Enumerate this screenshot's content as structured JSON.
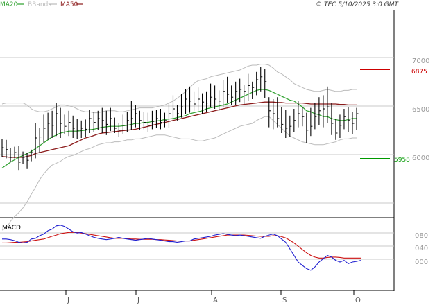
{
  "header": {
    "legend": [
      {
        "label": "MA20",
        "color": "#2ca02c"
      },
      {
        "label": "BBands",
        "color": "#bbbbbb"
      },
      {
        "label": "MA50",
        "color": "#8b1a1a"
      }
    ],
    "copyright": "© TEC 5/10/2025 3:0 GMT"
  },
  "colors": {
    "price": "#000000",
    "ma20": "#2ca02c",
    "ma50": "#8b1a1a",
    "bbands": "#bbbbbb",
    "grid": "#c8c8c8",
    "macd": "#1f1fd0",
    "signal": "#cc1111",
    "resistance": "#cc0000",
    "support": "#009900"
  },
  "chart_data": [
    {
      "type": "line",
      "panel": "price",
      "x_tick_labels": [
        "J",
        "J",
        "A",
        "S",
        "O"
      ],
      "y_tick_labels": [
        "7000",
        "6500",
        "6000"
      ],
      "ylim": [
        5450,
        7200
      ],
      "grid": true,
      "resistance": {
        "value": 6875,
        "label": "6875"
      },
      "support": {
        "value": 5958,
        "label": "5958"
      },
      "ohlc_high": [
        6190,
        6180,
        6100,
        6110,
        6120,
        6060,
        6050,
        6080,
        6350,
        6300,
        6440,
        6460,
        6480,
        6560,
        6510,
        6440,
        6480,
        6430,
        6400,
        6380,
        6390,
        6490,
        6470,
        6480,
        6510,
        6480,
        6510,
        6410,
        6350,
        6440,
        6470,
        6580,
        6540,
        6480,
        6470,
        6460,
        6480,
        6490,
        6500,
        6460,
        6560,
        6640,
        6540,
        6650,
        6700,
        6730,
        6680,
        6720,
        6660,
        6680,
        6760,
        6740,
        6690,
        6800,
        6830,
        6740,
        6780,
        6810,
        6750,
        6860,
        6780,
        6880,
        6930,
        6910,
        6620,
        6600,
        6620,
        6520,
        6490,
        6430,
        6500,
        6580,
        6520,
        6460,
        6510,
        6560,
        6620,
        6640,
        6730,
        6560,
        6400,
        6440,
        6500,
        6520,
        6470,
        6510
      ],
      "ohlc_low": [
        6000,
        5990,
        5950,
        5990,
        5870,
        5930,
        5880,
        5960,
        5990,
        6050,
        6150,
        6180,
        6200,
        6220,
        6200,
        6240,
        6220,
        6200,
        6190,
        6200,
        6210,
        6250,
        6260,
        6280,
        6250,
        6230,
        6270,
        6250,
        6210,
        6240,
        6260,
        6280,
        6310,
        6280,
        6290,
        6260,
        6290,
        6300,
        6290,
        6310,
        6300,
        6370,
        6380,
        6410,
        6450,
        6460,
        6480,
        6480,
        6450,
        6470,
        6520,
        6500,
        6480,
        6520,
        6560,
        6540,
        6540,
        6570,
        6550,
        6580,
        6600,
        6640,
        6680,
        6610,
        6310,
        6290,
        6310,
        6250,
        6200,
        6210,
        6260,
        6310,
        6320,
        6150,
        6220,
        6290,
        6330,
        6310,
        6350,
        6230,
        6180,
        6200,
        6290,
        6260,
        6240,
        6280
      ],
      "ohlc_close": [
        6100,
        6080,
        6000,
        6050,
        5950,
        6000,
        5970,
        6050,
        6200,
        6210,
        6300,
        6350,
        6330,
        6450,
        6350,
        6320,
        6360,
        6300,
        6280,
        6300,
        6290,
        6400,
        6360,
        6400,
        6380,
        6340,
        6400,
        6300,
        6280,
        6330,
        6380,
        6400,
        6450,
        6380,
        6360,
        6330,
        6370,
        6400,
        6360,
        6380,
        6450,
        6500,
        6450,
        6520,
        6600,
        6580,
        6550,
        6600,
        6570,
        6560,
        6620,
        6600,
        6580,
        6680,
        6650,
        6620,
        6680,
        6700,
        6680,
        6740,
        6720,
        6800,
        6830,
        6780,
        6480,
        6450,
        6400,
        6340,
        6300,
        6320,
        6380,
        6450,
        6420,
        6280,
        6320,
        6420,
        6480,
        6500,
        6520,
        6350,
        6250,
        6330,
        6420,
        6380,
        6350,
        6450
      ],
      "ma20": [
        5890,
        5920,
        5950,
        5975,
        6000,
        6020,
        6040,
        6060,
        6090,
        6120,
        6150,
        6180,
        6210,
        6230,
        6250,
        6260,
        6270,
        6270,
        6270,
        6275,
        6280,
        6285,
        6290,
        6300,
        6310,
        6315,
        6320,
        6320,
        6320,
        6325,
        6330,
        6340,
        6350,
        6350,
        6360,
        6360,
        6370,
        6375,
        6380,
        6390,
        6395,
        6400,
        6410,
        6420,
        6430,
        6450,
        6460,
        6470,
        6480,
        6500,
        6510,
        6520,
        6530,
        6540,
        6550,
        6570,
        6590,
        6610,
        6630,
        6650,
        6670,
        6690,
        6700,
        6700,
        6690,
        6670,
        6650,
        6630,
        6610,
        6590,
        6580,
        6550,
        6520,
        6480,
        6470,
        6450,
        6440,
        6420,
        6420,
        6400,
        6390,
        6380,
        6380,
        6390,
        6400,
        6400
      ],
      "ma50": [
        6010,
        6005,
        6000,
        6000,
        6000,
        6000,
        6010,
        6020,
        6040,
        6050,
        6060,
        6070,
        6080,
        6090,
        6100,
        6110,
        6120,
        6140,
        6160,
        6180,
        6200,
        6210,
        6225,
        6240,
        6250,
        6255,
        6260,
        6265,
        6270,
        6275,
        6280,
        6285,
        6290,
        6300,
        6310,
        6320,
        6330,
        6340,
        6350,
        6360,
        6370,
        6380,
        6390,
        6400,
        6410,
        6420,
        6430,
        6440,
        6450,
        6460,
        6470,
        6480,
        6490,
        6500,
        6510,
        6520,
        6530,
        6540,
        6545,
        6550,
        6555,
        6560,
        6565,
        6570,
        6570,
        6570,
        6565,
        6565,
        6560,
        6560,
        6560,
        6560,
        6560,
        6555,
        6550,
        6550,
        6550,
        6550,
        6550,
        6550,
        6550,
        6545,
        6545,
        6540,
        6540,
        6540
      ],
      "bb_upper": [
        6550,
        6560,
        6560,
        6560,
        6560,
        6560,
        6540,
        6500,
        6480,
        6470,
        6470,
        6480,
        6500,
        6520,
        6540,
        6540,
        6530,
        6520,
        6500,
        6480,
        6470,
        6470,
        6460,
        6460,
        6470,
        6480,
        6480,
        6480,
        6470,
        6470,
        6480,
        6490,
        6500,
        6510,
        6510,
        6510,
        6510,
        6520,
        6530,
        6540,
        6560,
        6580,
        6610,
        6640,
        6680,
        6720,
        6760,
        6790,
        6800,
        6810,
        6830,
        6840,
        6850,
        6860,
        6870,
        6880,
        6890,
        6900,
        6920,
        6940,
        6950,
        6950,
        6960,
        6960,
        6950,
        6920,
        6880,
        6860,
        6830,
        6800,
        6760,
        6740,
        6720,
        6700,
        6690,
        6680,
        6680,
        6690,
        6700,
        6690,
        6680,
        6680,
        6690,
        6690,
        6700,
        6700
      ],
      "bb_lower": [
        5250,
        5270,
        5340,
        5390,
        5430,
        5480,
        5540,
        5620,
        5690,
        5770,
        5830,
        5880,
        5920,
        5940,
        5960,
        5990,
        6010,
        6020,
        6040,
        6060,
        6080,
        6090,
        6110,
        6130,
        6140,
        6150,
        6150,
        6160,
        6160,
        6170,
        6180,
        6180,
        6190,
        6190,
        6200,
        6210,
        6220,
        6230,
        6230,
        6230,
        6220,
        6210,
        6200,
        6190,
        6190,
        6190,
        6180,
        6170,
        6170,
        6180,
        6190,
        6200,
        6220,
        6240,
        6260,
        6280,
        6300,
        6320,
        6330,
        6340,
        6350,
        6380,
        6400,
        6420,
        6420,
        6380,
        6340,
        6300,
        6260,
        6220,
        6200,
        6180,
        6160,
        6150,
        6140,
        6130,
        6130,
        6130,
        6140,
        6150,
        6160,
        6180,
        6190,
        6190,
        6200,
        6200
      ]
    },
    {
      "type": "line",
      "panel": "macd",
      "title": "MACD",
      "y_tick_labels": [
        "080",
        "040",
        "000"
      ],
      "ylim": [
        -40,
        130
      ],
      "grid": true,
      "series": [
        {
          "name": "",
          "values": [
            70,
            70,
            68,
            65,
            60,
            58,
            60,
            70,
            72,
            80,
            85,
            95,
            100,
            110,
            112,
            108,
            100,
            92,
            88,
            90,
            85,
            80,
            75,
            72,
            70,
            68,
            70,
            72,
            75,
            72,
            70,
            68,
            66,
            68,
            70,
            72,
            70,
            68,
            66,
            64,
            62,
            62,
            60,
            62,
            64,
            64,
            70,
            72,
            74,
            76,
            78,
            82,
            84,
            86,
            84,
            82,
            80,
            82,
            80,
            78,
            76,
            74,
            72,
            78,
            82,
            85,
            80,
            70,
            60,
            40,
            20,
            0,
            -10,
            -20,
            -25,
            -15,
            0,
            10,
            20,
            15,
            5,
            0,
            5,
            -5,
            0,
            2,
            5
          ]
        },
        {
          "name": "",
          "values": [
            58,
            58,
            59,
            60,
            60,
            61,
            62,
            64,
            66,
            68,
            70,
            74,
            78,
            82,
            86,
            88,
            90,
            90,
            90,
            88,
            86,
            84,
            82,
            80,
            78,
            76,
            74,
            72,
            72,
            72,
            71,
            70,
            70,
            69,
            69,
            69,
            69,
            68,
            68,
            67,
            66,
            65,
            64,
            64,
            64,
            64,
            66,
            68,
            70,
            72,
            74,
            76,
            78,
            80,
            82,
            82,
            82,
            82,
            82,
            81,
            80,
            79,
            78,
            78,
            78,
            80,
            80,
            77,
            73,
            66,
            58,
            48,
            38,
            28,
            20,
            15,
            12,
            12,
            14,
            15,
            15,
            14,
            12,
            12,
            12,
            12,
            12
          ]
        }
      ]
    }
  ]
}
